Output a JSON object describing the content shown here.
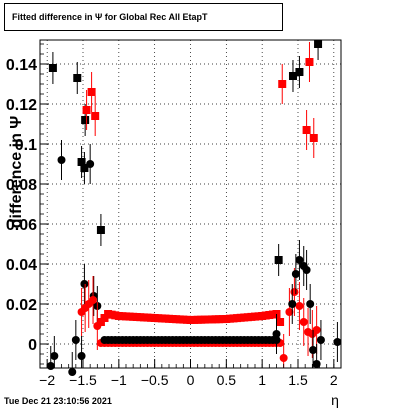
{
  "title": "Fitted difference in  Ψ  for Global Rec All EtapT",
  "footer_date": "Tue Dec 21 23:10:56 2021",
  "chart_data": {
    "type": "scatter",
    "title": "Fitted difference in  Ψ  for Global Rec All EtapT",
    "xlabel": "η",
    "ylabel": "difference in Ψ",
    "xlim": [
      -2.1,
      2.1
    ],
    "ylim": [
      -0.012,
      0.152
    ],
    "x_ticks": [
      -2,
      -1.5,
      -1,
      -0.5,
      0,
      0.5,
      1,
      1.5,
      2
    ],
    "x_tick_labels": [
      "−2",
      "−1.5",
      "−1",
      "−0.5",
      "0",
      "0.5",
      "1",
      "1.5",
      "2"
    ],
    "y_ticks": [
      0,
      0.02,
      0.04,
      0.06,
      0.08,
      0.1,
      0.12,
      0.14
    ],
    "y_tick_labels": [
      "0",
      "0.02",
      "0.04",
      "0.06",
      "0.08",
      "0.1",
      "0.12",
      "0.14"
    ],
    "grid": true,
    "colors": {
      "black_series": "#000000",
      "red_series": "#ff0000"
    },
    "series": [
      {
        "marker": "circle",
        "color": "#000000",
        "points": [
          [
            -1.95,
            -0.011
          ],
          [
            -1.9,
            -0.006
          ],
          [
            -1.8,
            0.092
          ],
          [
            -1.65,
            -0.014
          ],
          [
            -1.6,
            0.002
          ],
          [
            -1.52,
            -0.006
          ],
          [
            -1.48,
            0.03
          ],
          [
            -1.4,
            0.09
          ],
          [
            -1.35,
            0.024
          ],
          [
            -1.3,
            0.019
          ]
        ],
        "xerr": 0.025,
        "yerr": 0.01
      },
      {
        "marker": "square",
        "color": "#000000",
        "points": [
          [
            -1.92,
            0.138
          ],
          [
            -1.58,
            0.133
          ],
          [
            -1.52,
            0.091
          ],
          [
            -1.48,
            0.088
          ],
          [
            -1.47,
            0.112
          ],
          [
            -1.25,
            0.057
          ],
          [
            1.23,
            0.042
          ],
          [
            1.43,
            0.134
          ],
          [
            1.52,
            0.136
          ],
          [
            1.78,
            0.15
          ]
        ],
        "xerr": 0.025,
        "yerr": 0.008
      },
      {
        "marker": "square",
        "color": "#ff0000",
        "points": [
          [
            -1.45,
            0.117
          ],
          [
            -1.38,
            0.126
          ],
          [
            -1.33,
            0.114
          ],
          [
            1.28,
            0.13
          ],
          [
            1.62,
            0.107
          ],
          [
            1.66,
            0.141
          ],
          [
            1.72,
            0.103
          ]
        ],
        "xerr": 0.025,
        "yerr": 0.01
      },
      {
        "marker": "circle",
        "color": "#ff0000",
        "points": [
          [
            -1.52,
            0.016
          ],
          [
            -1.47,
            0.018
          ],
          [
            -1.42,
            0.02
          ],
          [
            -1.36,
            0.022
          ],
          [
            -1.3,
            0.009
          ],
          [
            1.3,
            -0.007
          ],
          [
            1.38,
            0.016
          ],
          [
            1.45,
            0.026
          ],
          [
            1.52,
            0.019
          ],
          [
            1.58,
            0.011
          ],
          [
            1.64,
            0.006
          ],
          [
            1.7,
            0.005
          ],
          [
            1.76,
            0.007
          ]
        ],
        "xerr": 0.025,
        "yerr": 0.012
      },
      {
        "marker": "circle",
        "color": "#000000",
        "points": [
          [
            1.2,
            0.005
          ],
          [
            1.42,
            0.02
          ],
          [
            1.47,
            0.035
          ],
          [
            1.52,
            0.042
          ],
          [
            1.58,
            0.039
          ],
          [
            1.62,
            0.037
          ],
          [
            1.67,
            0.02
          ],
          [
            1.71,
            -0.003
          ],
          [
            1.76,
            -0.01
          ],
          [
            1.82,
            0.002
          ],
          [
            2.05,
            0.001
          ]
        ],
        "xerr": 0.025,
        "yerr": 0.01
      }
    ],
    "bands": [
      {
        "name": "red-band",
        "color": "#ff0000",
        "marker": "square",
        "x_range": [
          -1.25,
          1.25
        ],
        "step": 0.05,
        "y_profile": [
          [
            -1.25,
            0.011
          ],
          [
            -1.15,
            0.015
          ],
          [
            -1.0,
            0.014
          ],
          [
            -0.5,
            0.013
          ],
          [
            0,
            0.012
          ],
          [
            0.5,
            0.0125
          ],
          [
            1.0,
            0.014
          ],
          [
            1.2,
            0.015
          ],
          [
            1.25,
            0.011
          ]
        ]
      },
      {
        "name": "red-baseline",
        "color": "#ff0000",
        "marker": "circle",
        "x_range": [
          -1.25,
          1.25
        ],
        "step": 0.05,
        "y_profile": [
          [
            -1.25,
            0.0005
          ],
          [
            1.25,
            0.0005
          ]
        ]
      },
      {
        "name": "black-baseline",
        "color": "#000000",
        "marker": "circle",
        "x_range": [
          -1.2,
          1.2
        ],
        "step": 0.05,
        "y_profile": [
          [
            -1.2,
            0.002
          ],
          [
            1.2,
            0.002
          ]
        ]
      }
    ]
  }
}
